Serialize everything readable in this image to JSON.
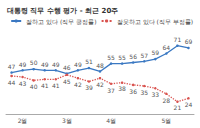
{
  "chart_data": {
    "type": "line",
    "title": "대통령 직무 수행 평가 - 최근 20주",
    "categories": [
      null,
      "2월",
      null,
      null,
      null,
      "3월",
      null,
      null,
      null,
      "4월",
      null,
      null,
      null,
      null,
      "5월",
      null,
      null
    ],
    "series": [
      {
        "name": "잘하고 있다 (직무 긍정률)",
        "color": "#3a78c2",
        "line_style": "solid",
        "values": [
          47,
          49,
          50,
          49,
          49,
          46,
          49,
          51,
          48,
          55,
          55,
          56,
          57,
          59,
          64,
          71,
          69
        ]
      },
      {
        "name": "잘못하고 있다 (직무 부정률)",
        "color": "#d9534f",
        "line_style": "dotted",
        "values": [
          44,
          43,
          40,
          41,
          41,
          45,
          42,
          39,
          42,
          37,
          38,
          36,
          35,
          33,
          28,
          21,
          24
        ]
      }
    ],
    "ylim": [
      10,
      85
    ],
    "grid": false,
    "legend": "top-right",
    "data_labels": true,
    "tick_labels": "x"
  }
}
